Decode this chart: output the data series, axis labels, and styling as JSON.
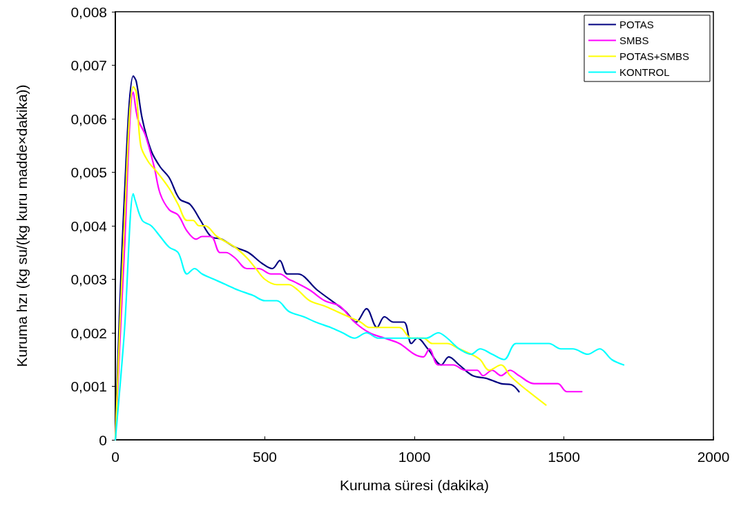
{
  "chart_data": {
    "type": "line",
    "xlabel": "Kuruma süresi (dakika)",
    "ylabel": "Kuruma hzı (kg su/(kg kuru madde×dakika))",
    "xlim": [
      0,
      2000
    ],
    "xticks": [
      0,
      500,
      1000,
      1500,
      2000
    ],
    "ylim": [
      0,
      0.008
    ],
    "yticks": [
      {
        "value": 0,
        "label": "0"
      },
      {
        "value": 0.001,
        "label": "0,001"
      },
      {
        "value": 0.002,
        "label": "0,002"
      },
      {
        "value": 0.003,
        "label": "0,003"
      },
      {
        "value": 0.004,
        "label": "0,004"
      },
      {
        "value": 0.005,
        "label": "0,005"
      },
      {
        "value": 0.006,
        "label": "0,006"
      },
      {
        "value": 0.007,
        "label": "0,007"
      },
      {
        "value": 0.008,
        "label": "0,008"
      }
    ],
    "grid": false,
    "legend": "top right",
    "marker": "none",
    "line_style": "solid",
    "series": [
      {
        "name": "POTAS",
        "color": "#000080",
        "x": [
          0,
          30,
          60,
          70,
          90,
          120,
          150,
          180,
          215,
          250,
          285,
          320,
          355,
          400,
          445,
          490,
          525,
          550,
          575,
          610,
          675,
          770,
          805,
          840,
          875,
          900,
          930,
          965,
          990,
          1010,
          1045,
          1090,
          1115,
          1150,
          1195,
          1240,
          1290,
          1325,
          1350
        ],
        "values": [
          0,
          0.0045,
          0.0068,
          0.0067,
          0.006,
          0.0054,
          0.0051,
          0.0049,
          0.0045,
          0.0044,
          0.0041,
          0.0038,
          0.00375,
          0.0036,
          0.0035,
          0.0033,
          0.0032,
          0.00335,
          0.0031,
          0.0031,
          0.0028,
          0.0024,
          0.0022,
          0.00245,
          0.0021,
          0.0023,
          0.0022,
          0.0022,
          0.0018,
          0.0019,
          0.0017,
          0.0014,
          0.00155,
          0.0014,
          0.0012,
          0.00115,
          0.00105,
          0.00103,
          0.0009
        ]
      },
      {
        "name": "SMBS",
        "color": "#ff00ff",
        "x": [
          0,
          30,
          60,
          75,
          100,
          130,
          150,
          180,
          210,
          240,
          270,
          290,
          320,
          350,
          370,
          400,
          440,
          480,
          520,
          550,
          580,
          600,
          650,
          700,
          750,
          800,
          850,
          900,
          950,
          1000,
          1030,
          1050,
          1080,
          1130,
          1170,
          1210,
          1230,
          1260,
          1290,
          1320,
          1350,
          1400,
          1450,
          1480,
          1510,
          1560
        ],
        "values": [
          0,
          0.0035,
          0.0065,
          0.006,
          0.0057,
          0.0051,
          0.0046,
          0.0043,
          0.0042,
          0.0039,
          0.00375,
          0.0038,
          0.0038,
          0.0035,
          0.0035,
          0.0034,
          0.0032,
          0.0032,
          0.0031,
          0.0031,
          0.003,
          0.00295,
          0.0028,
          0.0026,
          0.0025,
          0.0022,
          0.002,
          0.0019,
          0.0018,
          0.0016,
          0.00155,
          0.0017,
          0.0014,
          0.0014,
          0.0013,
          0.0013,
          0.0012,
          0.0013,
          0.0012,
          0.0013,
          0.0012,
          0.00105,
          0.00105,
          0.00105,
          0.0009,
          0.0009
        ]
      },
      {
        "name": "POTAS+SMBS",
        "color": "#ffff00",
        "x": [
          0,
          30,
          60,
          70,
          85,
          110,
          140,
          180,
          210,
          240,
          260,
          280,
          300,
          340,
          400,
          440,
          470,
          500,
          540,
          580,
          610,
          650,
          700,
          740,
          780,
          820,
          850,
          900,
          950,
          990,
          1030,
          1060,
          1110,
          1150,
          1190,
          1220,
          1250,
          1290,
          1320,
          1360,
          1440
        ],
        "values": [
          0,
          0.004,
          0.0066,
          0.0065,
          0.0055,
          0.0052,
          0.005,
          0.0047,
          0.0044,
          0.0041,
          0.0041,
          0.004,
          0.004,
          0.0038,
          0.0036,
          0.0034,
          0.0032,
          0.003,
          0.0029,
          0.0029,
          0.0028,
          0.0026,
          0.0025,
          0.0024,
          0.0023,
          0.0022,
          0.0021,
          0.0021,
          0.0021,
          0.0019,
          0.0019,
          0.0018,
          0.0018,
          0.0017,
          0.0016,
          0.0015,
          0.0013,
          0.0014,
          0.0012,
          0.001,
          0.00065
        ]
      },
      {
        "name": "KONTROL",
        "color": "#00ffff",
        "x": [
          0,
          30,
          60,
          65,
          90,
          120,
          150,
          180,
          210,
          240,
          265,
          290,
          330,
          370,
          410,
          460,
          500,
          540,
          580,
          630,
          670,
          720,
          760,
          800,
          840,
          880,
          920,
          960,
          1000,
          1040,
          1080,
          1110,
          1150,
          1190,
          1220,
          1260,
          1300,
          1340,
          1400,
          1450,
          1490,
          1530,
          1580,
          1620,
          1660,
          1700
        ],
        "values": [
          0,
          0.002,
          0.0046,
          0.0045,
          0.0041,
          0.004,
          0.0038,
          0.0036,
          0.0035,
          0.0031,
          0.0032,
          0.0031,
          0.003,
          0.0029,
          0.0028,
          0.0027,
          0.0026,
          0.0026,
          0.0024,
          0.0023,
          0.0022,
          0.0021,
          0.002,
          0.0019,
          0.002,
          0.0019,
          0.0019,
          0.0019,
          0.0019,
          0.0019,
          0.002,
          0.0019,
          0.0017,
          0.0016,
          0.0017,
          0.0016,
          0.0015,
          0.0018,
          0.0018,
          0.0018,
          0.0017,
          0.0017,
          0.0016,
          0.0017,
          0.0015,
          0.0014
        ]
      }
    ]
  }
}
